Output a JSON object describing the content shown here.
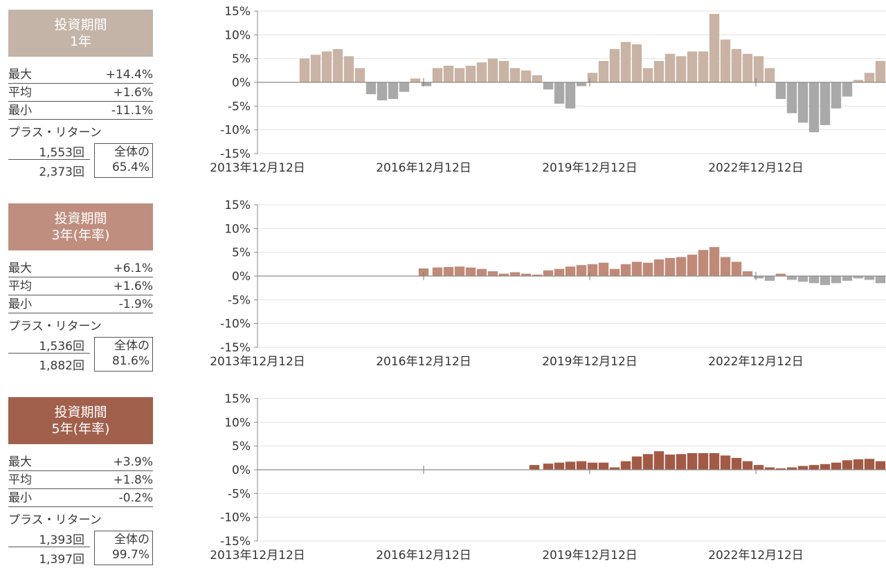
{
  "panels": [
    {
      "title_line1": "投資期間",
      "title_line2": "1年",
      "box_color": "#c4b3a7",
      "stats": [
        {
          "label": "最大",
          "value": "+14.4%"
        },
        {
          "label": "平均",
          "value": "+1.6%"
        },
        {
          "label": "最小",
          "value": "-11.1%"
        }
      ],
      "plus_return_label": "プラス・リターン",
      "plus_count": "1,553回",
      "total_count": "2,373回",
      "ratio_label": "全体の",
      "ratio_value": "65.4%"
    },
    {
      "title_line1": "投資期間",
      "title_line2": "3年(年率)",
      "box_color": "#bf8e7e",
      "stats": [
        {
          "label": "最大",
          "value": "+6.1%"
        },
        {
          "label": "平均",
          "value": "+1.6%"
        },
        {
          "label": "最小",
          "value": "-1.9%"
        }
      ],
      "plus_return_label": "プラス・リターン",
      "plus_count": "1,536回",
      "total_count": "1,882回",
      "ratio_label": "全体の",
      "ratio_value": "81.6%"
    },
    {
      "title_line1": "投資期間",
      "title_line2": "5年(年率)",
      "box_color": "#a0604c",
      "stats": [
        {
          "label": "最大",
          "value": "+3.9%"
        },
        {
          "label": "平均",
          "value": "+1.8%"
        },
        {
          "label": "最小",
          "value": "-0.2%"
        }
      ],
      "plus_return_label": "プラス・リターン",
      "plus_count": "1,393回",
      "total_count": "1,397回",
      "ratio_label": "全体の",
      "ratio_value": "99.7%"
    }
  ],
  "chart_data": [
    {
      "type": "bar",
      "title": "",
      "ylim": [
        -15,
        15
      ],
      "yticks": [
        "15%",
        "10%",
        "5%",
        "0%",
        "-5%",
        "-10%",
        "-15%"
      ],
      "xticks": [
        "2013年12月12日",
        "2016年12月12日",
        "2019年12月12日",
        "2022年12月12日"
      ],
      "grid": true,
      "positive_color": "#c9b3a4",
      "negative_color": "#a9a9a9",
      "x": [
        2014.8,
        2015.0,
        2015.2,
        2015.4,
        2015.6,
        2015.8,
        2016.0,
        2016.2,
        2016.4,
        2016.6,
        2016.8,
        2017.0,
        2017.2,
        2017.4,
        2017.6,
        2017.8,
        2018.0,
        2018.2,
        2018.4,
        2018.6,
        2018.8,
        2019.0,
        2019.2,
        2019.4,
        2019.6,
        2019.8,
        2020.0,
        2020.2,
        2020.4,
        2020.6,
        2020.8,
        2021.0,
        2021.2,
        2021.4,
        2021.6,
        2021.8,
        2022.0,
        2022.2,
        2022.4,
        2022.6,
        2022.8,
        2023.0,
        2023.2,
        2023.4,
        2023.6,
        2023.8,
        2024.0,
        2024.2,
        2024.4,
        2024.6,
        2024.8,
        2025.0,
        2025.2
      ],
      "values": [
        5.0,
        5.8,
        6.5,
        7.0,
        5.5,
        3.0,
        -2.5,
        -3.8,
        -3.5,
        -2.0,
        0.8,
        -0.8,
        3.0,
        3.5,
        3.0,
        3.5,
        4.2,
        5.0,
        4.5,
        3.0,
        2.5,
        1.5,
        -1.5,
        -4.5,
        -5.5,
        -0.8,
        2.0,
        4.5,
        7.0,
        8.5,
        8.0,
        3.0,
        4.5,
        6.0,
        5.5,
        6.5,
        6.5,
        14.4,
        9.0,
        7.0,
        6.0,
        5.5,
        3.0,
        -3.5,
        -6.5,
        -8.5,
        -10.5,
        -9.0,
        -5.5,
        -3.0,
        0.5,
        2.0,
        4.5
      ]
    },
    {
      "type": "bar",
      "title": "",
      "ylim": [
        -15,
        15
      ],
      "yticks": [
        "15%",
        "10%",
        "5%",
        "0%",
        "-5%",
        "-10%",
        "-15%"
      ],
      "xticks": [
        "2013年12月12日",
        "2016年12月12日",
        "2019年12月12日",
        "2022年12月12日"
      ],
      "grid": true,
      "positive_color": "#c08a78",
      "negative_color": "#a9a9a9",
      "x": [
        2016.95,
        2017.2,
        2017.4,
        2017.6,
        2017.8,
        2018.0,
        2018.2,
        2018.4,
        2018.6,
        2018.8,
        2019.0,
        2019.2,
        2019.4,
        2019.6,
        2019.8,
        2020.0,
        2020.2,
        2020.4,
        2020.6,
        2020.8,
        2021.0,
        2021.2,
        2021.4,
        2021.6,
        2021.8,
        2022.0,
        2022.2,
        2022.4,
        2022.6,
        2022.8,
        2023.0,
        2023.2,
        2023.4,
        2023.6,
        2023.8,
        2024.0,
        2024.2,
        2024.4,
        2024.6,
        2024.8,
        2025.0,
        2025.2
      ],
      "values": [
        1.6,
        1.8,
        1.9,
        2.0,
        1.8,
        1.5,
        1.0,
        0.5,
        0.8,
        0.5,
        0.3,
        1.2,
        1.5,
        2.0,
        2.3,
        2.5,
        2.8,
        1.5,
        2.5,
        3.0,
        2.8,
        3.5,
        3.8,
        4.0,
        4.5,
        5.5,
        6.1,
        4.0,
        3.0,
        1.0,
        -0.5,
        -1.0,
        0.5,
        -0.8,
        -1.2,
        -1.5,
        -1.9,
        -1.5,
        -1.0,
        -0.5,
        -0.8,
        -1.5
      ]
    },
    {
      "type": "bar",
      "title": "",
      "ylim": [
        -15,
        15
      ],
      "yticks": [
        "15%",
        "10%",
        "5%",
        "0%",
        "-5%",
        "-10%",
        "-15%"
      ],
      "xticks": [
        "2013年12月12日",
        "2016年12月12日",
        "2019年12月12日",
        "2022年12月12日"
      ],
      "grid": true,
      "positive_color": "#a35a45",
      "negative_color": "#a9a9a9",
      "x": [
        2018.95,
        2019.2,
        2019.4,
        2019.6,
        2019.8,
        2020.0,
        2020.2,
        2020.4,
        2020.6,
        2020.8,
        2021.0,
        2021.2,
        2021.4,
        2021.6,
        2021.8,
        2022.0,
        2022.2,
        2022.4,
        2022.6,
        2022.8,
        2023.0,
        2023.2,
        2023.4,
        2023.6,
        2023.8,
        2024.0,
        2024.2,
        2024.4,
        2024.6,
        2024.8,
        2025.0,
        2025.2
      ],
      "values": [
        1.0,
        1.3,
        1.5,
        1.7,
        1.8,
        1.5,
        1.5,
        0.5,
        1.8,
        2.8,
        3.3,
        3.9,
        3.2,
        3.3,
        3.5,
        3.5,
        3.5,
        3.0,
        2.5,
        1.8,
        1.0,
        0.5,
        0.3,
        0.5,
        0.8,
        1.0,
        1.2,
        1.5,
        2.0,
        2.2,
        2.3,
        1.8
      ]
    }
  ]
}
